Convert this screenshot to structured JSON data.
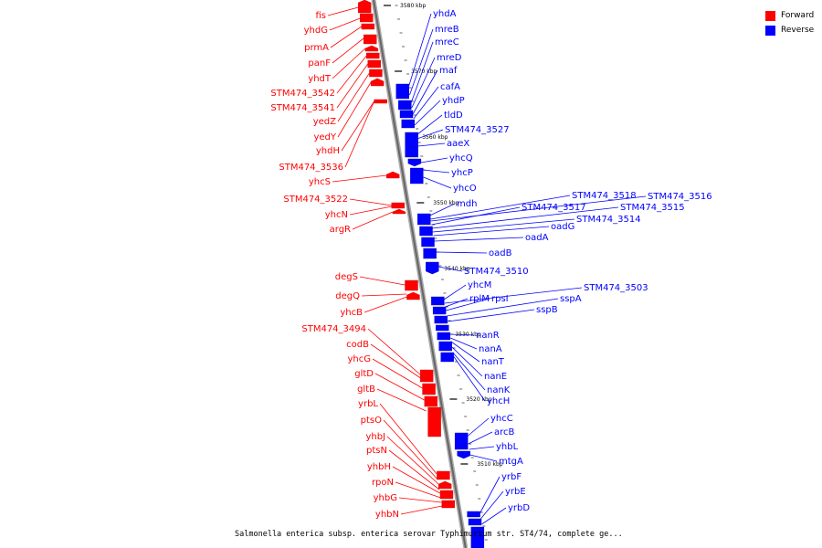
{
  "colors": {
    "forward": "#ff0000",
    "reverse": "#0000ff",
    "backbone": "#888888"
  },
  "legend": [
    {
      "label": "Forward",
      "color": "#ff0000"
    },
    {
      "label": "Reverse",
      "color": "#0000ff"
    }
  ],
  "caption": "Salmonella enterica subsp. enterica serovar Typhimurium str. ST4/74, complete ge...",
  "ticks": [
    "3580 kbp",
    "3570 kbp",
    "3560 kbp",
    "3550 kbp",
    "3540 kbp",
    "3530 kbp",
    "3520 kbp",
    "3510 kbp"
  ],
  "forward_genes": [
    "fis",
    "yhdG",
    "prmA",
    "panF",
    "yhdT",
    "STM474_3542",
    "STM474_3541",
    "yedZ",
    "yedY",
    "yhdH",
    "STM474_3536",
    "yhcS",
    "STM474_3522",
    "yhcN",
    "argR",
    "degS",
    "degQ",
    "yhcB",
    "STM474_3494",
    "codB",
    "yhcG",
    "gltD",
    "gltB",
    "yrbL",
    "ptsO",
    "yhbJ",
    "ptsN",
    "yhbH",
    "rpoN",
    "yhbG",
    "yhbN"
  ],
  "reverse_genes": [
    "yhdA",
    "mreB",
    "mreC",
    "mreD",
    "maf",
    "cafA",
    "yhdP",
    "tldD",
    "STM474_3527",
    "aaeX",
    "yhcQ",
    "yhcP",
    "yhcO",
    "mdh",
    "STM474_3518",
    "STM474_3516",
    "STM474_3517",
    "STM474_3515",
    "STM474_3514",
    "oadG",
    "oadA",
    "oadB",
    "STM474_3510",
    "yhcM",
    "STM474_3503",
    "rplM",
    "rpsI",
    "sspA",
    "sspB",
    "nanR",
    "nanA",
    "nanT",
    "nanE",
    "nanK",
    "yhcH",
    "yhcC",
    "arcB",
    "yhbL",
    "mtgA",
    "yrbF",
    "yrbE",
    "yrbD"
  ]
}
